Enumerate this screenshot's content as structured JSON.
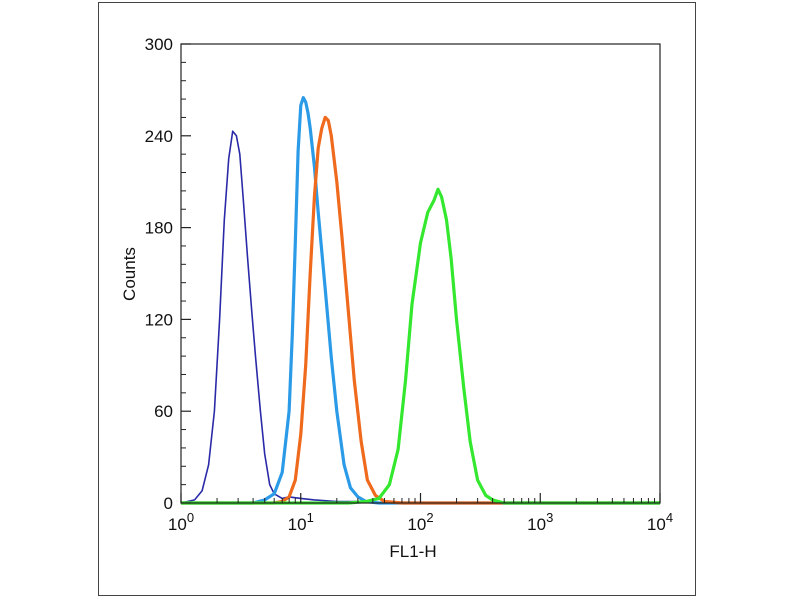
{
  "chart_data": {
    "type": "line",
    "xscale": "log",
    "xlim": [
      1,
      10000
    ],
    "ylim": [
      0,
      300
    ],
    "xlabel": "FL1-H",
    "ylabel": "Counts",
    "xticks": [
      {
        "value": 1,
        "base": "10",
        "exp": "0"
      },
      {
        "value": 10,
        "base": "10",
        "exp": "1"
      },
      {
        "value": 100,
        "base": "10",
        "exp": "2"
      },
      {
        "value": 1000,
        "base": "10",
        "exp": "3"
      },
      {
        "value": 10000,
        "base": "10",
        "exp": "4"
      }
    ],
    "yticks": [
      0,
      60,
      120,
      180,
      240,
      300
    ],
    "grid": false,
    "series": [
      {
        "color": "#2a2aa8",
        "x": [
          1,
          1.3,
          1.5,
          1.7,
          1.9,
          2.1,
          2.3,
          2.5,
          2.7,
          2.9,
          3.1,
          3.3,
          3.6,
          3.9,
          4.2,
          4.6,
          5.0,
          5.5,
          6.0,
          7.0,
          8.0,
          10,
          13,
          20,
          30,
          50,
          100,
          1000,
          10000
        ],
        "y": [
          0,
          2,
          8,
          25,
          60,
          120,
          185,
          225,
          243,
          240,
          228,
          200,
          160,
          125,
          95,
          60,
          32,
          12,
          6,
          3,
          4,
          3,
          2,
          1,
          1,
          0,
          0,
          0,
          0
        ]
      },
      {
        "color": "#2b9be8",
        "x": [
          1,
          4,
          5,
          6,
          7,
          8,
          8.5,
          9,
          9.5,
          10,
          10.5,
          11,
          11.5,
          12,
          13,
          14,
          16,
          18,
          20,
          23,
          26,
          30,
          35,
          45,
          100,
          10000
        ],
        "y": [
          0,
          0,
          2,
          6,
          20,
          60,
          110,
          170,
          230,
          260,
          265,
          262,
          255,
          245,
          220,
          190,
          140,
          95,
          60,
          25,
          10,
          4,
          1,
          0,
          0,
          0
        ]
      },
      {
        "color": "#ef6a1c",
        "x": [
          1,
          6,
          7,
          8,
          9,
          10,
          11,
          12,
          13,
          14,
          15,
          16,
          17,
          18,
          20,
          22,
          25,
          28,
          32,
          36,
          42,
          50,
          70,
          100,
          10000
        ],
        "y": [
          0,
          0,
          1,
          4,
          15,
          45,
          90,
          150,
          200,
          232,
          245,
          252,
          250,
          240,
          210,
          175,
          125,
          80,
          40,
          15,
          5,
          1,
          0,
          0,
          0
        ]
      },
      {
        "color": "#33e82e",
        "x": [
          1,
          25,
          35,
          45,
          55,
          65,
          75,
          85,
          100,
          115,
          130,
          140,
          150,
          165,
          180,
          200,
          230,
          260,
          300,
          350,
          400,
          500,
          700,
          1000,
          3000,
          10000
        ],
        "y": [
          0,
          0,
          1,
          3,
          12,
          35,
          80,
          130,
          170,
          190,
          198,
          205,
          200,
          185,
          160,
          120,
          75,
          40,
          15,
          5,
          2,
          0,
          0,
          0,
          0,
          0
        ]
      }
    ]
  }
}
